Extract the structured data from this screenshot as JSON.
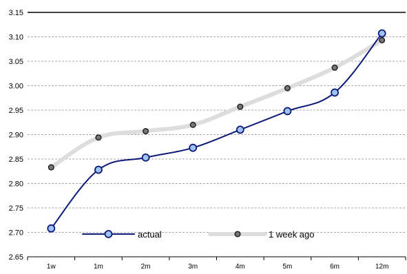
{
  "chart_data": {
    "type": "line",
    "categories": [
      "1w",
      "1m",
      "2m",
      "3m",
      "4m",
      "5m",
      "6m",
      "12m"
    ],
    "series": [
      {
        "name": "actual",
        "values": [
          2.708,
          2.828,
          2.853,
          2.873,
          2.91,
          2.948,
          2.986,
          3.107
        ],
        "color": "#0c1a78",
        "marker_fill": "#9ec3f3"
      },
      {
        "name": "1 week ago",
        "values": [
          2.833,
          2.894,
          2.907,
          2.92,
          2.957,
          2.995,
          3.037,
          3.093
        ],
        "color": "#dddddd",
        "marker_fill": "#777777"
      }
    ],
    "ylim": [
      2.65,
      3.15
    ],
    "yticks": [
      "2.65",
      "2.70",
      "2.75",
      "2.80",
      "2.85",
      "2.90",
      "2.95",
      "3.00",
      "3.05",
      "3.10",
      "3.15"
    ],
    "grid": true,
    "legend_position": "bottom-center",
    "title": "",
    "xlabel": "",
    "ylabel": ""
  }
}
